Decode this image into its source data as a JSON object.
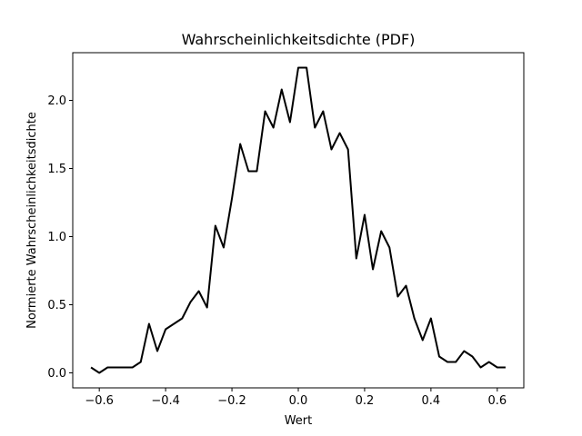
{
  "chart_data": {
    "type": "line",
    "title": "Wahrscheinlichkeitsdichte (PDF)",
    "xlabel": "Wert",
    "ylabel": "Normierte Wahrscheinlichkeitsdichte",
    "xlim": [
      -0.68,
      0.68
    ],
    "ylim": [
      -0.11,
      2.35
    ],
    "xticks": [
      -0.6,
      -0.4,
      -0.2,
      0.0,
      0.2,
      0.4,
      0.6
    ],
    "xtick_labels": [
      "−0.6",
      "−0.4",
      "−0.2",
      "0.0",
      "0.2",
      "0.4",
      "0.6"
    ],
    "yticks": [
      0.0,
      0.5,
      1.0,
      1.5,
      2.0
    ],
    "ytick_labels": [
      "0.0",
      "0.5",
      "1.0",
      "1.5",
      "2.0"
    ],
    "grid": false,
    "line_color": "#000000",
    "series": [
      {
        "x": [
          -0.625,
          -0.6,
          -0.575,
          -0.55,
          -0.525,
          -0.5,
          -0.475,
          -0.45,
          -0.425,
          -0.4,
          -0.375,
          -0.35,
          -0.325,
          -0.3,
          -0.275,
          -0.25,
          -0.225,
          -0.2,
          -0.175,
          -0.15,
          -0.125,
          -0.1,
          -0.075,
          -0.05,
          -0.025,
          0.0,
          0.025,
          0.05,
          0.075,
          0.1,
          0.125,
          0.15,
          0.175,
          0.2,
          0.225,
          0.25,
          0.275,
          0.3,
          0.325,
          0.35,
          0.375,
          0.4,
          0.425,
          0.45,
          0.475,
          0.5,
          0.525,
          0.55,
          0.575,
          0.6,
          0.625
        ],
        "y": [
          0.04,
          0.0,
          0.04,
          0.04,
          0.04,
          0.04,
          0.08,
          0.36,
          0.16,
          0.32,
          0.36,
          0.4,
          0.52,
          0.6,
          0.48,
          1.08,
          0.92,
          1.28,
          1.68,
          1.48,
          1.48,
          1.92,
          1.8,
          2.08,
          1.84,
          2.24,
          2.24,
          1.8,
          1.92,
          1.64,
          1.76,
          1.64,
          0.84,
          1.16,
          0.76,
          1.04,
          0.92,
          0.56,
          0.64,
          0.4,
          0.24,
          0.4,
          0.12,
          0.08,
          0.08,
          0.16,
          0.12,
          0.04,
          0.08,
          0.04,
          0.04
        ]
      }
    ]
  }
}
